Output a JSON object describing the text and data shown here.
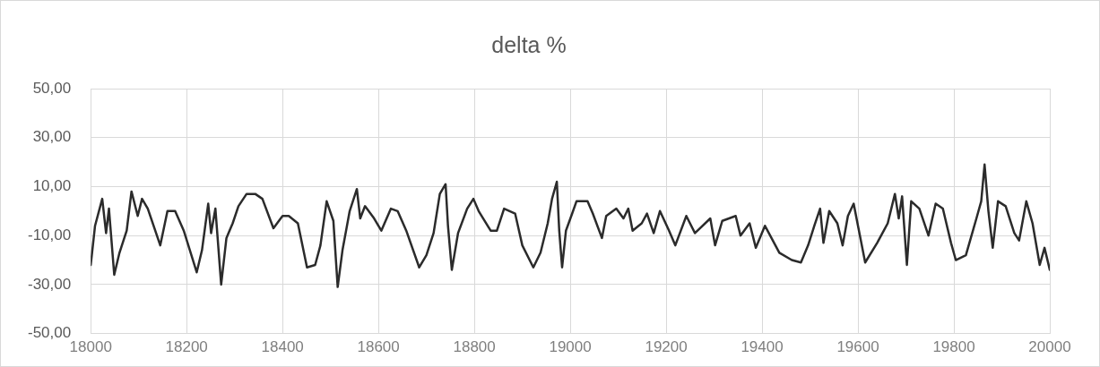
{
  "chart_data": {
    "type": "line",
    "title": "delta %",
    "color": "#2b2b2b",
    "marker": "none",
    "line_style": "solid",
    "grid": true,
    "legend": false,
    "x": [
      18000,
      18009,
      18024,
      18032,
      18038,
      18049,
      18060,
      18075,
      18085,
      18098,
      18107,
      18119,
      18145,
      18160,
      18176,
      18194,
      18221,
      18232,
      18245,
      18251,
      18260,
      18272,
      18283,
      18296,
      18308,
      18325,
      18343,
      18358,
      18381,
      18400,
      18413,
      18432,
      18451,
      18468,
      18479,
      18492,
      18506,
      18515,
      18525,
      18540,
      18555,
      18562,
      18572,
      18591,
      18606,
      18626,
      18640,
      18658,
      18685,
      18700,
      18715,
      18728,
      18740,
      18745,
      18753,
      18766,
      18785,
      18798,
      18809,
      18834,
      18847,
      18862,
      18885,
      18900,
      18923,
      18938,
      18953,
      18962,
      18972,
      18977,
      18983,
      18991,
      19004,
      19013,
      19036,
      19047,
      19066,
      19075,
      19096,
      19111,
      19121,
      19130,
      19149,
      19160,
      19174,
      19187,
      19206,
      19219,
      19242,
      19260,
      19292,
      19302,
      19317,
      19345,
      19355,
      19374,
      19387,
      19406,
      19436,
      19462,
      19481,
      19496,
      19509,
      19521,
      19528,
      19540,
      19557,
      19568,
      19579,
      19591,
      19600,
      19615,
      19640,
      19662,
      19677,
      19685,
      19692,
      19702,
      19711,
      19728,
      19747,
      19762,
      19777,
      19794,
      19804,
      19825,
      19847,
      19857,
      19864,
      19872,
      19881,
      19892,
      19908,
      19926,
      19936,
      19951,
      19964,
      19979,
      19989,
      20000
    ],
    "values": [
      -22,
      -6,
      5,
      -9,
      1,
      -26,
      -17,
      -8,
      8,
      -2,
      5,
      1,
      -14,
      0,
      0,
      -8,
      -25,
      -16,
      3,
      -9,
      1,
      -30,
      -11,
      -5,
      2,
      7,
      7,
      5,
      -7,
      -2,
      -2,
      -5,
      -23,
      -22,
      -14,
      4,
      -4,
      -31,
      -16,
      0,
      9,
      -3,
      2,
      -3,
      -8,
      1,
      0,
      -8,
      -23,
      -18,
      -9,
      7,
      11,
      -6,
      -24,
      -9,
      1,
      5,
      0,
      -8,
      -8,
      1,
      -1,
      -14,
      -23,
      -17,
      -5,
      5,
      12,
      -8,
      -23,
      -8,
      -1,
      4,
      4,
      -1,
      -11,
      -2,
      1,
      -3,
      1,
      -8,
      -5,
      -1,
      -9,
      0,
      -8,
      -14,
      -2,
      -9,
      -3,
      -14,
      -4,
      -2,
      -10,
      -5,
      -15,
      -6,
      -17,
      -20,
      -21,
      -14,
      -6,
      1,
      -13,
      0,
      -5,
      -14,
      -2,
      3,
      -6,
      -21,
      -13,
      -5,
      7,
      -3,
      6,
      -22,
      4,
      1,
      -10,
      3,
      1,
      -13,
      -20,
      -18,
      -3,
      4,
      19,
      0,
      -15,
      4,
      2,
      -9,
      -12,
      4,
      -5,
      -22,
      -15,
      -24
    ],
    "xlim": [
      18000,
      20000
    ],
    "xticks": [
      18000,
      18200,
      18400,
      18600,
      18800,
      19000,
      19200,
      19400,
      19600,
      19800,
      20000
    ],
    "ylim": [
      -50,
      50
    ],
    "yticks": [
      {
        "value": -50,
        "label": "-50,00"
      },
      {
        "value": -30,
        "label": "-30,00"
      },
      {
        "value": -10,
        "label": "-10,00"
      },
      {
        "value": 10,
        "label": "10,00"
      },
      {
        "value": 30,
        "label": "30,00"
      },
      {
        "value": 50,
        "label": "50,00"
      }
    ]
  }
}
